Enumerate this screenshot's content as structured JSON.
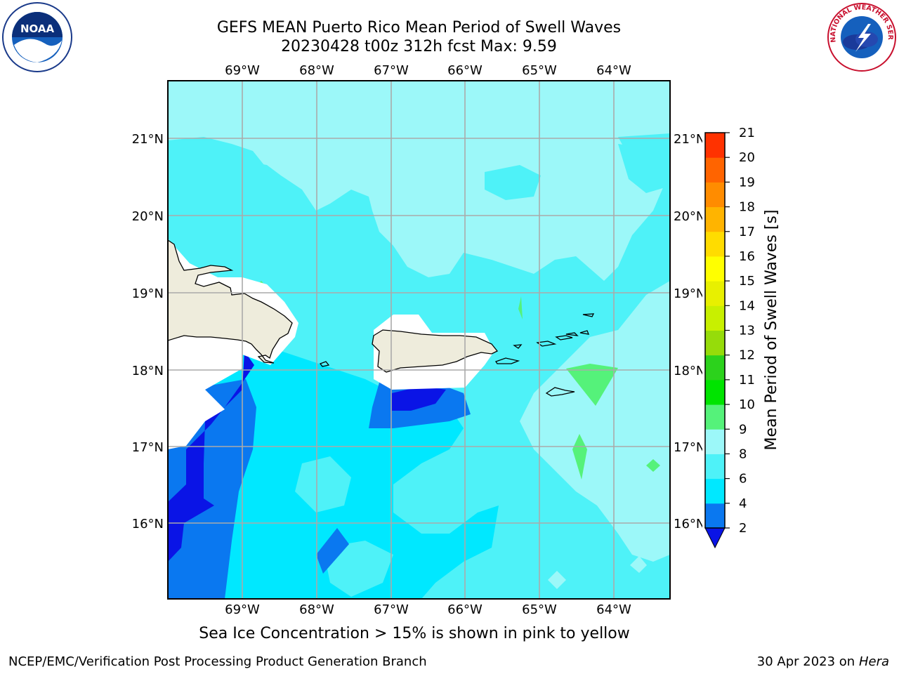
{
  "header": {
    "title_line1": "GEFS MEAN Puerto Rico Mean Period of Swell Waves",
    "title_line2": "20230428 t00z 312h fcst   Max: 9.59"
  },
  "map": {
    "lon_labels": [
      "69°W",
      "68°W",
      "67°W",
      "66°W",
      "65°W",
      "64°W"
    ],
    "lat_labels": [
      "21°N",
      "20°N",
      "19°N",
      "18°N",
      "17°N",
      "16°N"
    ],
    "land_color": "#eeecdc",
    "features": [
      "Hispaniola",
      "Puerto Rico",
      "Virgin Islands"
    ]
  },
  "colorbar": {
    "label": "Mean Period of Swell Waves [s]",
    "ticks": [
      "2",
      "4",
      "6",
      "8",
      "9",
      "10",
      "11",
      "12",
      "13",
      "14",
      "15",
      "16",
      "17",
      "18",
      "19",
      "20",
      "21"
    ],
    "colors": [
      "#0a78f0",
      "#00e8ff",
      "#4ef2f8",
      "#9cf8f9",
      "#55f27a",
      "#00e400",
      "#2cd21c",
      "#96dc0a",
      "#c8f000",
      "#e8f000",
      "#ffff00",
      "#ffdc00",
      "#ffb400",
      "#ff8c00",
      "#ff6400",
      "#ff3200"
    ],
    "under_color": "#0a14e6",
    "over_color": "#ff0000"
  },
  "logos": {
    "left": "NOAA",
    "right_text": "NATIONAL WEATHER SERVICE"
  },
  "footer": {
    "note": "Sea Ice Concentration > 15% is shown in pink to yellow",
    "credit_left": "NCEP/EMC/Verification Post Processing Product Generation Branch",
    "credit_date": "30 Apr 2023 on ",
    "credit_host": "Hera"
  }
}
